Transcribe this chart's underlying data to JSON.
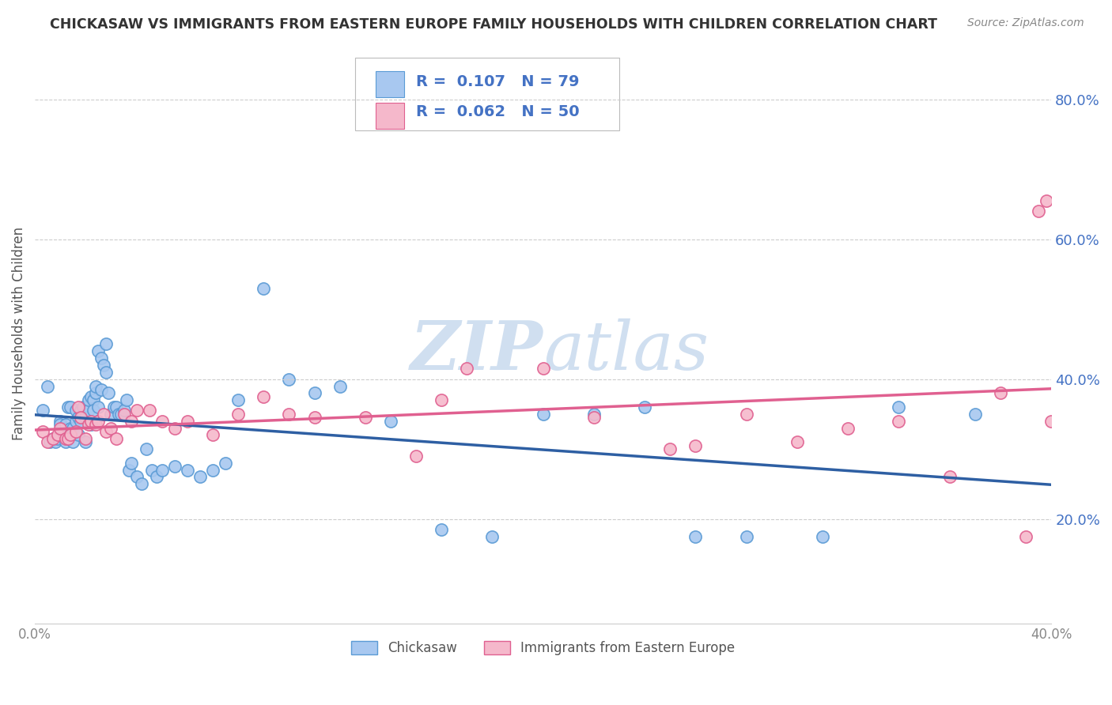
{
  "title": "CHICKASAW VS IMMIGRANTS FROM EASTERN EUROPE FAMILY HOUSEHOLDS WITH CHILDREN CORRELATION CHART",
  "source_text": "Source: ZipAtlas.com",
  "ylabel": "Family Households with Children",
  "xlim": [
    0.0,
    0.4
  ],
  "ylim": [
    0.05,
    0.88
  ],
  "xticks": [
    0.0,
    0.05,
    0.1,
    0.15,
    0.2,
    0.25,
    0.3,
    0.35,
    0.4
  ],
  "xticklabels": [
    "0.0%",
    "",
    "",
    "",
    "",
    "",
    "",
    "",
    "40.0%"
  ],
  "yticks_right": [
    0.2,
    0.4,
    0.6,
    0.8
  ],
  "yticklabels_right": [
    "20.0%",
    "40.0%",
    "60.0%",
    "80.0%"
  ],
  "chickasaw_color": "#A8C8F0",
  "chickasaw_edge": "#5B9BD5",
  "immigrant_color": "#F5B8CB",
  "immigrant_edge": "#E06090",
  "trendline_chickasaw_color": "#2E5FA3",
  "trendline_immigrant_color": "#E06090",
  "watermark_color": "#D0DFF0",
  "grid_color": "#CCCCCC",
  "background_color": "#FFFFFF",
  "title_color": "#333333",
  "source_color": "#888888",
  "ylabel_color": "#555555",
  "tick_color": "#4472C4",
  "legend_text_color": "#4472C4",
  "chickasaw_x": [
    0.003,
    0.005,
    0.006,
    0.007,
    0.008,
    0.009,
    0.01,
    0.01,
    0.011,
    0.012,
    0.012,
    0.013,
    0.013,
    0.014,
    0.014,
    0.015,
    0.015,
    0.016,
    0.016,
    0.017,
    0.017,
    0.018,
    0.018,
    0.019,
    0.019,
    0.02,
    0.02,
    0.021,
    0.021,
    0.022,
    0.022,
    0.023,
    0.023,
    0.024,
    0.024,
    0.025,
    0.025,
    0.026,
    0.026,
    0.027,
    0.028,
    0.028,
    0.029,
    0.03,
    0.031,
    0.032,
    0.033,
    0.034,
    0.035,
    0.036,
    0.037,
    0.038,
    0.04,
    0.042,
    0.044,
    0.046,
    0.048,
    0.05,
    0.055,
    0.06,
    0.065,
    0.07,
    0.075,
    0.08,
    0.09,
    0.1,
    0.11,
    0.12,
    0.14,
    0.16,
    0.18,
    0.2,
    0.22,
    0.24,
    0.26,
    0.28,
    0.31,
    0.34,
    0.37
  ],
  "chickasaw_y": [
    0.355,
    0.39,
    0.31,
    0.315,
    0.31,
    0.315,
    0.34,
    0.335,
    0.33,
    0.31,
    0.335,
    0.32,
    0.36,
    0.33,
    0.36,
    0.31,
    0.33,
    0.34,
    0.355,
    0.32,
    0.345,
    0.34,
    0.355,
    0.35,
    0.36,
    0.31,
    0.345,
    0.355,
    0.37,
    0.375,
    0.335,
    0.37,
    0.355,
    0.38,
    0.39,
    0.36,
    0.44,
    0.43,
    0.385,
    0.42,
    0.45,
    0.41,
    0.38,
    0.35,
    0.36,
    0.36,
    0.35,
    0.35,
    0.355,
    0.37,
    0.27,
    0.28,
    0.26,
    0.25,
    0.3,
    0.27,
    0.26,
    0.27,
    0.275,
    0.27,
    0.26,
    0.27,
    0.28,
    0.37,
    0.53,
    0.4,
    0.38,
    0.39,
    0.34,
    0.185,
    0.175,
    0.35,
    0.35,
    0.36,
    0.175,
    0.175,
    0.175,
    0.36,
    0.35
  ],
  "immigrant_x": [
    0.003,
    0.005,
    0.007,
    0.009,
    0.01,
    0.012,
    0.013,
    0.014,
    0.016,
    0.017,
    0.018,
    0.02,
    0.021,
    0.022,
    0.024,
    0.025,
    0.027,
    0.028,
    0.03,
    0.032,
    0.035,
    0.038,
    0.04,
    0.045,
    0.05,
    0.055,
    0.06,
    0.07,
    0.08,
    0.09,
    0.1,
    0.11,
    0.13,
    0.15,
    0.16,
    0.17,
    0.2,
    0.22,
    0.25,
    0.26,
    0.28,
    0.3,
    0.32,
    0.34,
    0.36,
    0.38,
    0.39,
    0.395,
    0.398,
    0.4
  ],
  "immigrant_y": [
    0.325,
    0.31,
    0.315,
    0.32,
    0.33,
    0.315,
    0.315,
    0.32,
    0.325,
    0.36,
    0.345,
    0.315,
    0.335,
    0.34,
    0.335,
    0.34,
    0.35,
    0.325,
    0.33,
    0.315,
    0.35,
    0.34,
    0.355,
    0.355,
    0.34,
    0.33,
    0.34,
    0.32,
    0.35,
    0.375,
    0.35,
    0.345,
    0.345,
    0.29,
    0.37,
    0.415,
    0.415,
    0.345,
    0.3,
    0.305,
    0.35,
    0.31,
    0.33,
    0.34,
    0.26,
    0.38,
    0.175,
    0.64,
    0.655,
    0.34
  ]
}
